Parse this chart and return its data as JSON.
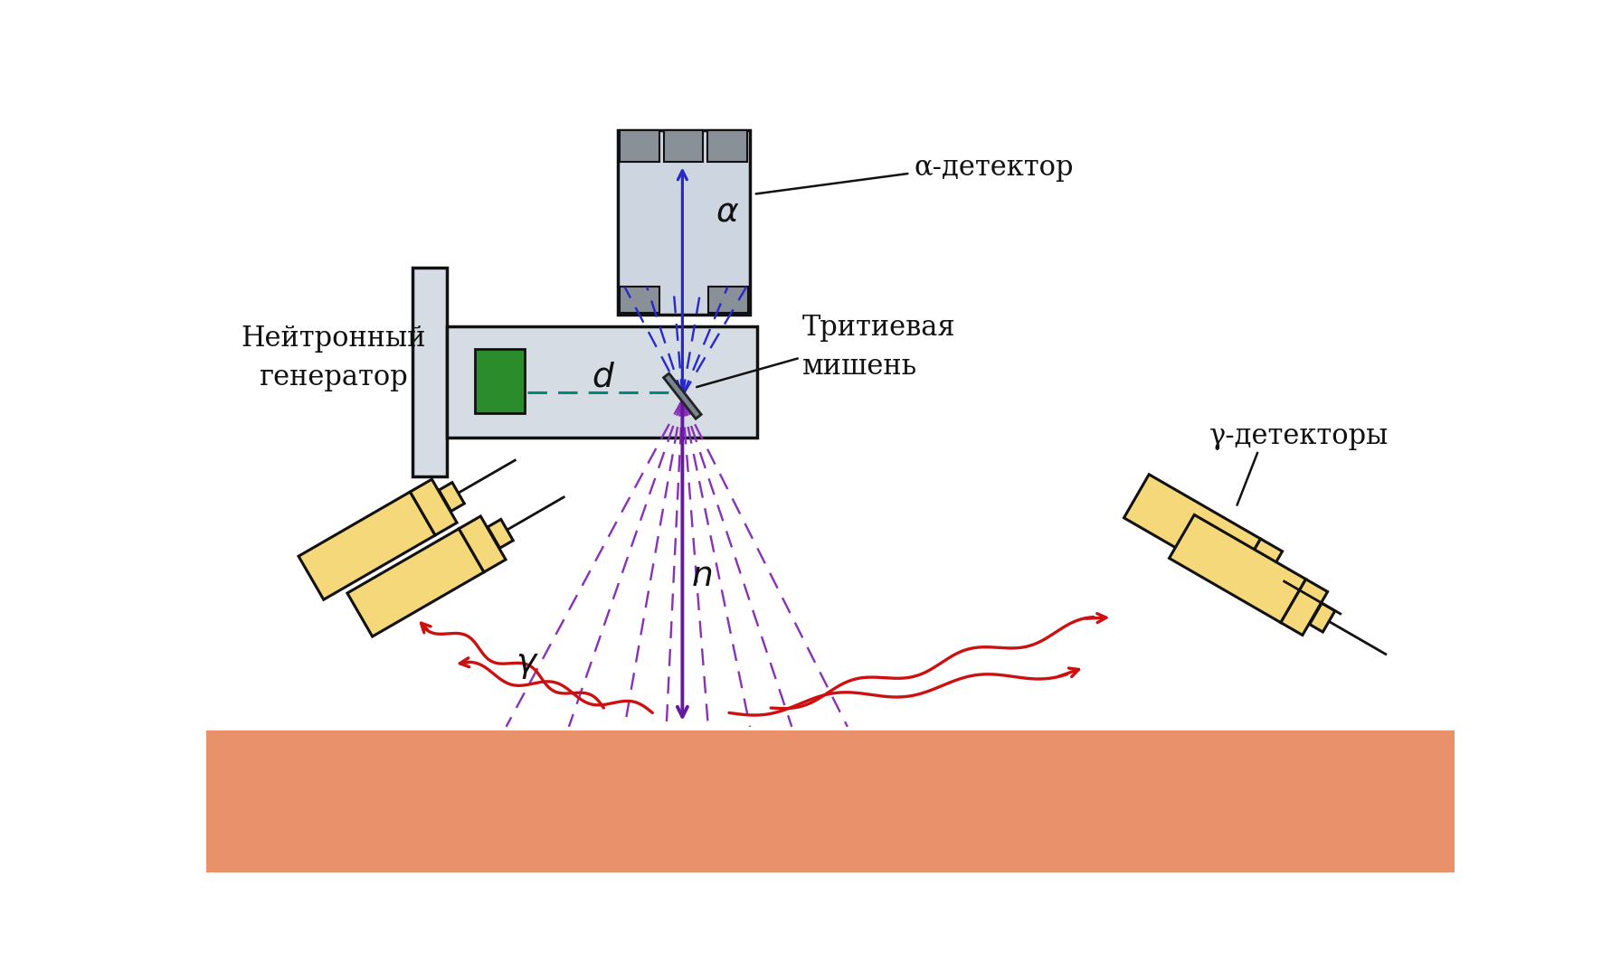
{
  "bg_color": "#ffffff",
  "ground_color": "#E8916A",
  "generator_box_color": "#D5DCE4",
  "generator_box_edge": "#111111",
  "green_box_color": "#2A8C2A",
  "alpha_detector_color": "#CDD6E0",
  "gray_block_color": "#8A9098",
  "target_color": "#7A8490",
  "gamma_detector_color": "#F5D87A",
  "gamma_detector_edge": "#111111",
  "blue_dashes_color": "#2828CC",
  "purple_dashes_color": "#8830B8",
  "purple_arrow_color": "#6818A0",
  "red_wavy_color": "#CC1010",
  "teal_dashes_color": "#008878",
  "label_color": "#111111",
  "label_neutron_gen": "Нейтронный\nгенератор",
  "label_alpha_det": "α-детектор",
  "label_tritium": "Тритиевая\nмишень",
  "label_gamma_det": "γ-детекторы"
}
